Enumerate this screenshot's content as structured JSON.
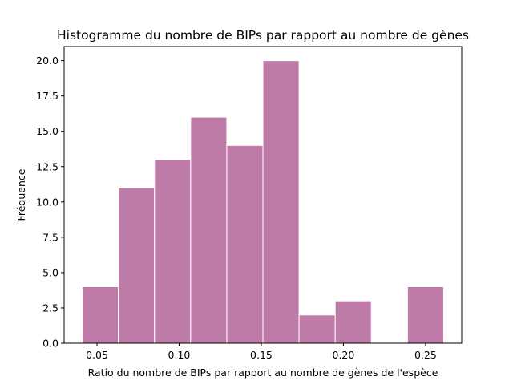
{
  "chart_data": {
    "type": "bar",
    "title": "Histogramme du nombre de BIPs par rapport au nombre de gènes",
    "xlabel": "Ratio du nombre de BIPs par rapport au nombre de gènes de l'espèce",
    "ylabel": "Fréquence",
    "bins": [
      {
        "x0": 0.041,
        "x1": 0.063,
        "value": 4
      },
      {
        "x0": 0.063,
        "x1": 0.085,
        "value": 11
      },
      {
        "x0": 0.085,
        "x1": 0.107,
        "value": 13
      },
      {
        "x0": 0.107,
        "x1": 0.129,
        "value": 16
      },
      {
        "x0": 0.129,
        "x1": 0.151,
        "value": 14
      },
      {
        "x0": 0.151,
        "x1": 0.173,
        "value": 20
      },
      {
        "x0": 0.173,
        "x1": 0.195,
        "value": 2
      },
      {
        "x0": 0.195,
        "x1": 0.217,
        "value": 3
      },
      {
        "x0": 0.217,
        "x1": 0.239,
        "value": 0
      },
      {
        "x0": 0.239,
        "x1": 0.261,
        "value": 4
      }
    ],
    "xlim": [
      0.03,
      0.272
    ],
    "ylim": [
      0,
      21
    ],
    "xticks": [
      {
        "value": 0.05,
        "label": "0.05"
      },
      {
        "value": 0.1,
        "label": "0.10"
      },
      {
        "value": 0.15,
        "label": "0.15"
      },
      {
        "value": 0.2,
        "label": "0.20"
      },
      {
        "value": 0.25,
        "label": "0.25"
      }
    ],
    "yticks": [
      {
        "value": 0,
        "label": "0.0"
      },
      {
        "value": 2.5,
        "label": "2.5"
      },
      {
        "value": 5,
        "label": "5.0"
      },
      {
        "value": 7.5,
        "label": "7.5"
      },
      {
        "value": 10,
        "label": "10.0"
      },
      {
        "value": 12.5,
        "label": "12.5"
      },
      {
        "value": 15,
        "label": "15.0"
      },
      {
        "value": 17.5,
        "label": "17.5"
      },
      {
        "value": 20,
        "label": "20.0"
      }
    ],
    "bar_color": "#bf7ba8",
    "edge_color": "#ffffff",
    "grid": false,
    "legend": "none"
  }
}
